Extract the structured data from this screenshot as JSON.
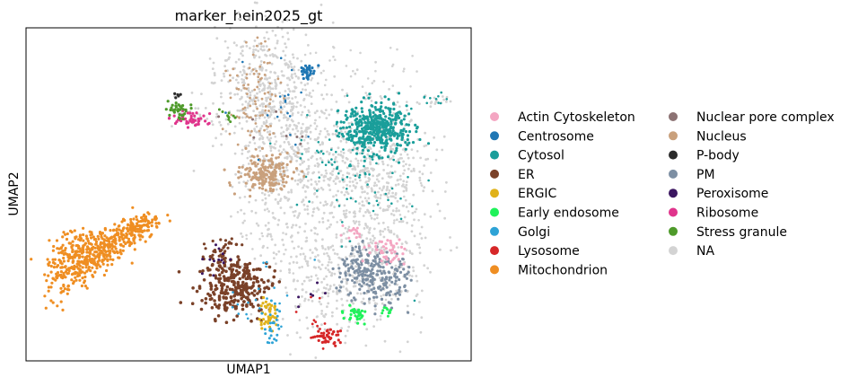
{
  "chart_data": {
    "type": "scatter",
    "title": "marker_hein2025_gt",
    "xlabel": "UMAP1",
    "ylabel": "UMAP2",
    "grid": false,
    "legend_placement": "right",
    "ticks": "none",
    "legend": [
      {
        "label": "Actin Cytoskeleton",
        "color": "#f4a6c2"
      },
      {
        "label": "Centrosome",
        "color": "#1f77b4"
      },
      {
        "label": "Cytosol",
        "color": "#1a9e9a"
      },
      {
        "label": "ER",
        "color": "#7a4128"
      },
      {
        "label": "ERGIC",
        "color": "#e0b21a"
      },
      {
        "label": "Early endosome",
        "color": "#1ff25a"
      },
      {
        "label": "Golgi",
        "color": "#2ea3d6"
      },
      {
        "label": "Lysosome",
        "color": "#d62728"
      },
      {
        "label": "Mitochondrion",
        "color": "#ef8e22"
      },
      {
        "label": "Nuclear pore complex",
        "color": "#8c7273"
      },
      {
        "label": "Nucleus",
        "color": "#c9a07c"
      },
      {
        "label": "P-body",
        "color": "#2b2b2b"
      },
      {
        "label": "PM",
        "color": "#7d8fa3"
      },
      {
        "label": "Peroxisome",
        "color": "#3b1660"
      },
      {
        "label": "Ribosome",
        "color": "#e0348c"
      },
      {
        "label": "Stress granule",
        "color": "#4e9a2a"
      },
      {
        "label": "NA",
        "color": "#d3d3d3"
      }
    ]
  }
}
